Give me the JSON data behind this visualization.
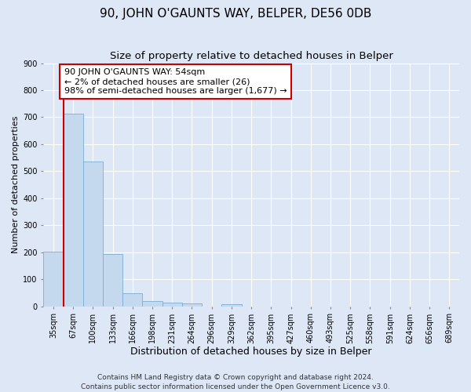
{
  "title": "90, JOHN O'GAUNTS WAY, BELPER, DE56 0DB",
  "subtitle": "Size of property relative to detached houses in Belper",
  "xlabel": "Distribution of detached houses by size in Belper",
  "ylabel": "Number of detached properties",
  "categories": [
    "35sqm",
    "67sqm",
    "100sqm",
    "133sqm",
    "166sqm",
    "198sqm",
    "231sqm",
    "264sqm",
    "296sqm",
    "329sqm",
    "362sqm",
    "395sqm",
    "427sqm",
    "460sqm",
    "493sqm",
    "525sqm",
    "558sqm",
    "591sqm",
    "624sqm",
    "656sqm",
    "689sqm"
  ],
  "values": [
    202,
    712,
    535,
    193,
    48,
    20,
    15,
    10,
    0,
    8,
    0,
    0,
    0,
    0,
    0,
    0,
    0,
    0,
    0,
    0,
    0
  ],
  "bar_color": "#c5d9ee",
  "bar_edge_color": "#7aadd4",
  "annotation_line1": "90 JOHN O'GAUNTS WAY: 54sqm",
  "annotation_line2": "← 2% of detached houses are smaller (26)",
  "annotation_line3": "98% of semi-detached houses are larger (1,677) →",
  "annotation_box_color": "#ffffff",
  "annotation_box_edge": "#cc0000",
  "ylim": [
    0,
    900
  ],
  "yticks": [
    0,
    100,
    200,
    300,
    400,
    500,
    600,
    700,
    800,
    900
  ],
  "footer_line1": "Contains HM Land Registry data © Crown copyright and database right 2024.",
  "footer_line2": "Contains public sector information licensed under the Open Government Licence v3.0.",
  "background_color": "#dde7f5",
  "plot_background": "#dde7f5",
  "grid_color": "#ffffff",
  "red_line_color": "#cc0000",
  "title_fontsize": 11,
  "subtitle_fontsize": 9.5,
  "xlabel_fontsize": 9,
  "ylabel_fontsize": 8,
  "tick_fontsize": 7,
  "footer_fontsize": 6.5,
  "annot_fontsize": 8
}
